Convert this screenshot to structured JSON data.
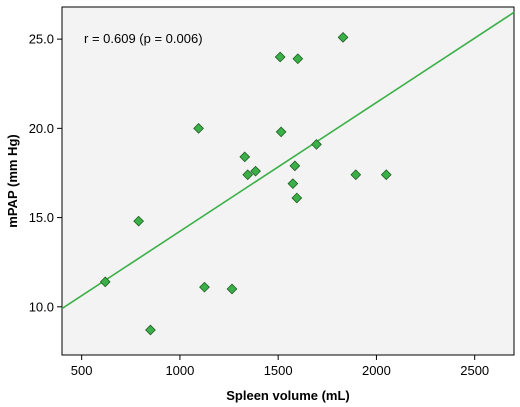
{
  "chart_data": {
    "type": "scatter",
    "xlabel": "Spleen volume (mL)",
    "ylabel": "mPAP (mm Hg)",
    "annotation": "r = 0.609 (p = 0.006)",
    "xlim": [
      400,
      2700
    ],
    "ylim": [
      7.3,
      26.8
    ],
    "xticks": [
      500,
      1000,
      1500,
      2000,
      2500
    ],
    "yticks": [
      10.0,
      15.0,
      20.0,
      25.0
    ],
    "ytick_labels": [
      "10.0",
      "15.0",
      "20.0",
      "25.0"
    ],
    "grid": false,
    "background": "#f3f3f3",
    "point_color": "#3cb048",
    "line_color": "#3cb048",
    "regression_line": {
      "x": [
        400,
        2700
      ],
      "y": [
        9.9,
        26.5
      ]
    },
    "points": [
      {
        "x": 620,
        "y": 11.4
      },
      {
        "x": 790,
        "y": 14.8
      },
      {
        "x": 850,
        "y": 8.7
      },
      {
        "x": 1095,
        "y": 20.0
      },
      {
        "x": 1125,
        "y": 11.1
      },
      {
        "x": 1265,
        "y": 11.0
      },
      {
        "x": 1330,
        "y": 18.4
      },
      {
        "x": 1345,
        "y": 17.4
      },
      {
        "x": 1385,
        "y": 17.6
      },
      {
        "x": 1510,
        "y": 24.0
      },
      {
        "x": 1515,
        "y": 19.8
      },
      {
        "x": 1575,
        "y": 16.9
      },
      {
        "x": 1585,
        "y": 17.9
      },
      {
        "x": 1595,
        "y": 16.1
      },
      {
        "x": 1600,
        "y": 23.9
      },
      {
        "x": 1695,
        "y": 19.1
      },
      {
        "x": 1830,
        "y": 25.1
      },
      {
        "x": 1895,
        "y": 17.4
      },
      {
        "x": 2050,
        "y": 17.4
      }
    ]
  }
}
